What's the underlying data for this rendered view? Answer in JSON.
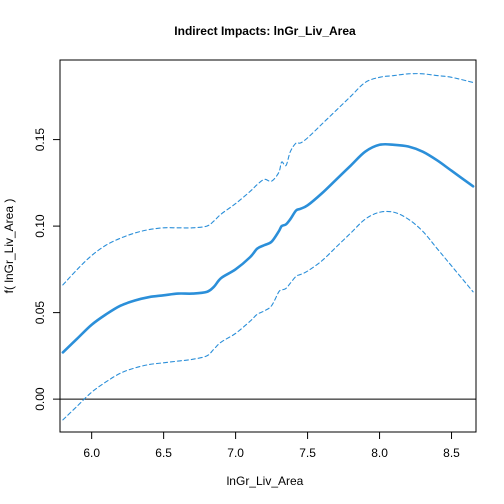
{
  "chart_data": {
    "type": "line",
    "title": "Indirect Impacts:  lnGr_Liv_Area",
    "xlabel": "lnGr_Liv_Area",
    "ylabel": "f( lnGr_Liv_Area )",
    "xlim": [
      5.78,
      8.67
    ],
    "ylim": [
      -0.019,
      0.196
    ],
    "x_ticks": [
      6.0,
      6.5,
      7.0,
      7.5,
      8.0,
      8.5
    ],
    "x_tick_labels": [
      "6.0",
      "6.5",
      "7.0",
      "7.5",
      "8.0",
      "8.5"
    ],
    "y_ticks": [
      0.0,
      0.05,
      0.1,
      0.15
    ],
    "y_tick_labels": [
      "0.00",
      "0.05",
      "0.10",
      "0.15"
    ],
    "reference_line_y": 0,
    "grid": false,
    "color": "#2b8fd9",
    "series": [
      {
        "role": "upper",
        "style": "dashed",
        "x": [
          5.8,
          5.9,
          6.0,
          6.1,
          6.2,
          6.3,
          6.4,
          6.5,
          6.6,
          6.7,
          6.8,
          6.85,
          6.9,
          7.0,
          7.1,
          7.15,
          7.2,
          7.25,
          7.3,
          7.32,
          7.35,
          7.38,
          7.42,
          7.45,
          7.5,
          7.6,
          7.7,
          7.8,
          7.9,
          8.0,
          8.1,
          8.2,
          8.3,
          8.4,
          8.5,
          8.65
        ],
        "y": [
          0.066,
          0.075,
          0.083,
          0.089,
          0.093,
          0.096,
          0.098,
          0.099,
          0.099,
          0.099,
          0.1,
          0.103,
          0.107,
          0.113,
          0.12,
          0.124,
          0.127,
          0.126,
          0.131,
          0.137,
          0.135,
          0.143,
          0.148,
          0.148,
          0.151,
          0.159,
          0.167,
          0.175,
          0.183,
          0.186,
          0.187,
          0.188,
          0.188,
          0.187,
          0.186,
          0.183
        ]
      },
      {
        "role": "estimate",
        "style": "solid",
        "x": [
          5.8,
          5.9,
          6.0,
          6.1,
          6.2,
          6.3,
          6.4,
          6.5,
          6.6,
          6.7,
          6.8,
          6.85,
          6.9,
          7.0,
          7.1,
          7.15,
          7.2,
          7.25,
          7.3,
          7.32,
          7.35,
          7.38,
          7.42,
          7.45,
          7.5,
          7.6,
          7.7,
          7.8,
          7.9,
          8.0,
          8.1,
          8.2,
          8.3,
          8.4,
          8.5,
          8.65
        ],
        "y": [
          0.027,
          0.035,
          0.043,
          0.049,
          0.054,
          0.057,
          0.059,
          0.06,
          0.061,
          0.061,
          0.062,
          0.065,
          0.07,
          0.075,
          0.082,
          0.087,
          0.089,
          0.091,
          0.097,
          0.1,
          0.101,
          0.104,
          0.109,
          0.11,
          0.112,
          0.119,
          0.127,
          0.135,
          0.143,
          0.147,
          0.147,
          0.146,
          0.143,
          0.138,
          0.132,
          0.123
        ]
      },
      {
        "role": "lower",
        "style": "dashed",
        "x": [
          5.8,
          5.9,
          6.0,
          6.1,
          6.2,
          6.3,
          6.4,
          6.5,
          6.6,
          6.7,
          6.8,
          6.85,
          6.9,
          7.0,
          7.1,
          7.15,
          7.2,
          7.25,
          7.3,
          7.32,
          7.35,
          7.38,
          7.42,
          7.45,
          7.5,
          7.6,
          7.7,
          7.8,
          7.9,
          8.0,
          8.1,
          8.2,
          8.3,
          8.4,
          8.5,
          8.65
        ],
        "y": [
          -0.012,
          -0.004,
          0.004,
          0.01,
          0.015,
          0.018,
          0.02,
          0.021,
          0.022,
          0.023,
          0.025,
          0.029,
          0.033,
          0.038,
          0.045,
          0.049,
          0.051,
          0.054,
          0.062,
          0.063,
          0.064,
          0.067,
          0.071,
          0.072,
          0.074,
          0.08,
          0.088,
          0.096,
          0.104,
          0.108,
          0.108,
          0.104,
          0.097,
          0.087,
          0.077,
          0.062
        ]
      }
    ]
  }
}
